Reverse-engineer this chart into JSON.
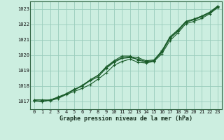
{
  "title": "Graphe pression niveau de la mer (hPa)",
  "bg_color": "#cceee0",
  "grid_color": "#99ccbb",
  "line_color": "#1a5c2a",
  "ylim": [
    1016.5,
    1023.5
  ],
  "yticks": [
    1017,
    1018,
    1019,
    1020,
    1021,
    1022,
    1023
  ],
  "xlim": [
    -0.5,
    23.5
  ],
  "xticks": [
    0,
    1,
    2,
    3,
    4,
    5,
    6,
    7,
    8,
    9,
    10,
    11,
    12,
    13,
    14,
    15,
    16,
    17,
    18,
    19,
    20,
    21,
    22,
    23
  ],
  "series": [
    [
      1017.1,
      1017.1,
      1017.05,
      1017.2,
      1017.45,
      1017.65,
      1017.85,
      1018.1,
      1018.45,
      1018.85,
      1019.35,
      1019.6,
      1019.75,
      1019.55,
      1019.5,
      1019.6,
      1020.1,
      1020.95,
      1021.45,
      1022.05,
      1022.2,
      1022.4,
      1022.7,
      1023.1
    ],
    [
      1017.1,
      1017.1,
      1017.1,
      1017.3,
      1017.5,
      1017.8,
      1018.0,
      1018.4,
      1018.7,
      1019.2,
      1019.6,
      1019.85,
      1019.9,
      1019.85,
      1019.65,
      1019.7,
      1020.3,
      1021.2,
      1021.65,
      1022.2,
      1022.35,
      1022.55,
      1022.8,
      1023.2
    ],
    [
      1017.05,
      1017.0,
      1017.1,
      1017.25,
      1017.5,
      1017.75,
      1018.0,
      1018.35,
      1018.6,
      1019.15,
      1019.55,
      1019.8,
      1019.85,
      1019.75,
      1019.6,
      1019.65,
      1020.2,
      1021.1,
      1021.55,
      1022.15,
      1022.3,
      1022.5,
      1022.75,
      1023.15
    ],
    [
      1017.05,
      1017.0,
      1017.1,
      1017.25,
      1017.5,
      1017.75,
      1018.05,
      1018.4,
      1018.7,
      1019.25,
      1019.65,
      1019.95,
      1019.95,
      1019.7,
      1019.55,
      1019.65,
      1020.25,
      1021.15,
      1021.6,
      1022.2,
      1022.35,
      1022.55,
      1022.8,
      1023.2
    ]
  ]
}
